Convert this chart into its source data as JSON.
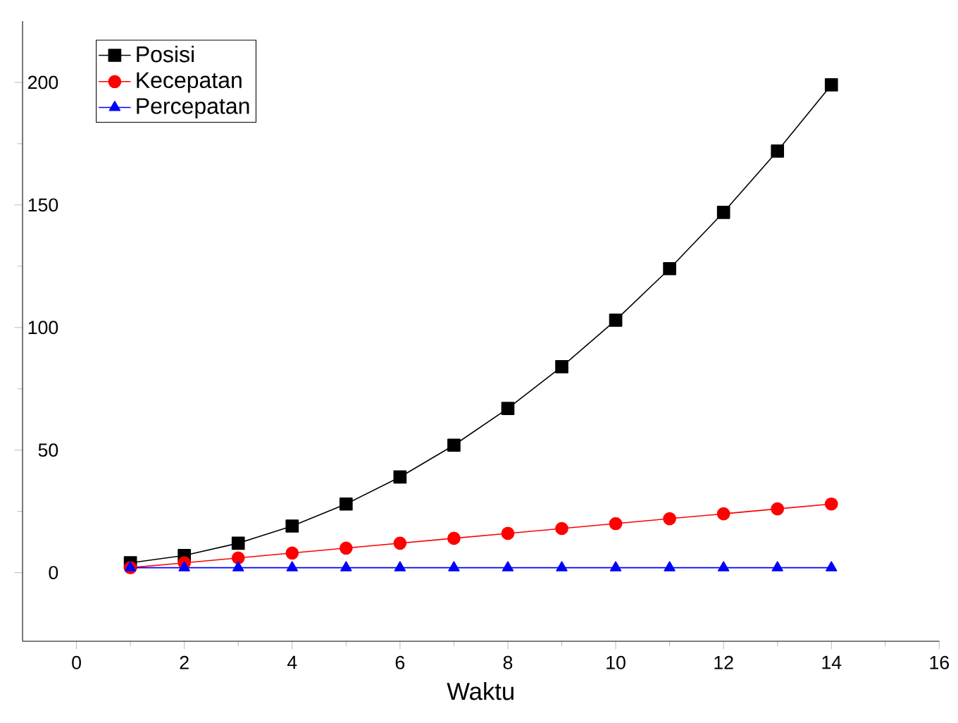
{
  "chart_data": {
    "type": "line",
    "xlabel": "Waktu",
    "x": [
      1,
      2,
      3,
      4,
      5,
      6,
      7,
      8,
      9,
      10,
      11,
      12,
      13,
      14
    ],
    "series": [
      {
        "name": "Posisi",
        "color": "#000000",
        "marker": "square",
        "values": [
          4,
          7,
          12,
          19,
          28,
          39,
          52,
          67,
          84,
          103,
          124,
          147,
          172,
          199
        ]
      },
      {
        "name": "Kecepatan",
        "color": "#ff0000",
        "marker": "circle",
        "values": [
          2,
          4,
          6,
          8,
          10,
          12,
          14,
          16,
          18,
          20,
          22,
          24,
          26,
          28
        ]
      },
      {
        "name": "Percepatan",
        "color": "#0000ff",
        "marker": "triangle",
        "values": [
          2,
          2,
          2,
          2,
          2,
          2,
          2,
          2,
          2,
          2,
          2,
          2,
          2,
          2
        ]
      }
    ],
    "xlim": [
      -1,
      16
    ],
    "ylim": [
      -28,
      225
    ],
    "xticks": [
      0,
      2,
      4,
      6,
      8,
      10,
      12,
      14,
      16
    ],
    "yticks": [
      0,
      50,
      100,
      150,
      200
    ],
    "legend": "top left",
    "grid": false,
    "line_style": "solid"
  }
}
